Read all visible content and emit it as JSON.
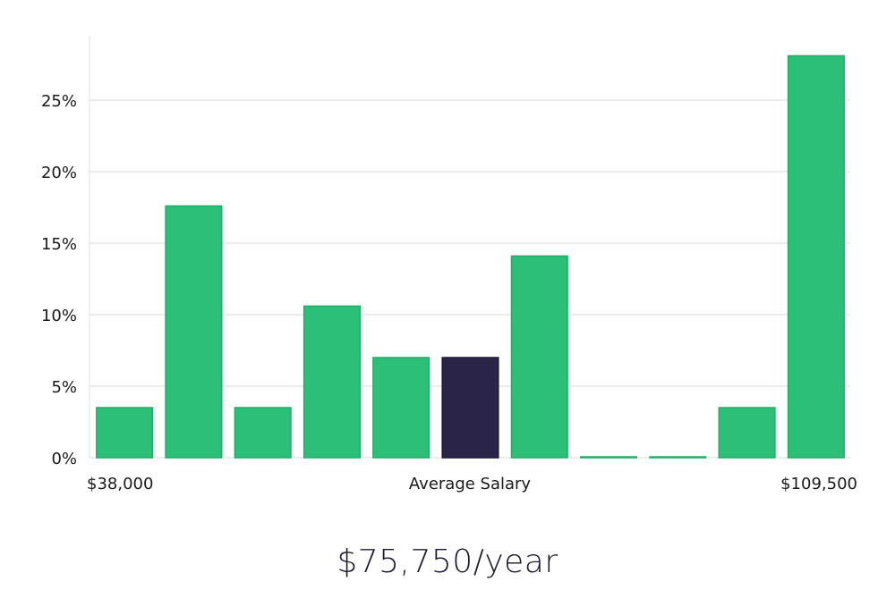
{
  "chart_data": {
    "type": "bar",
    "categories": [
      "1",
      "2",
      "3",
      "4",
      "5",
      "6",
      "7",
      "8",
      "9",
      "10",
      "11"
    ],
    "values": [
      3.5,
      17.6,
      3.5,
      10.6,
      7.0,
      7.0,
      14.1,
      0.0,
      0.0,
      3.5,
      28.1
    ],
    "highlight_index": 5,
    "ylim": [
      0,
      29.5
    ],
    "yticks": [
      0,
      5,
      10,
      15,
      20,
      25
    ],
    "ytick_suffix": "%",
    "x_labels": {
      "left": "$38,000",
      "center": "Average Salary",
      "right": "$109,500"
    },
    "grid": true,
    "legend": "none",
    "colors": {
      "bar": "#2bbf77",
      "bar_stroke": "#1fae68",
      "highlight": "#2a2548",
      "grid": "#d9d9d9",
      "axis": "#e0e0e0"
    }
  },
  "summary": {
    "average_salary": "$75,750/year"
  }
}
